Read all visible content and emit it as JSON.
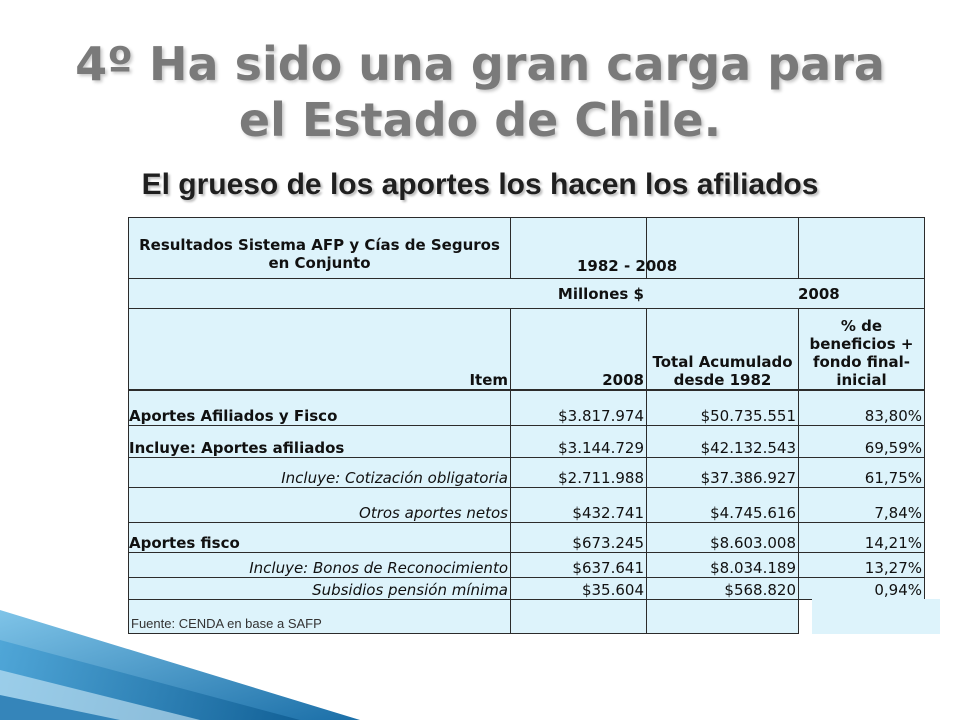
{
  "title_line1": "4º Ha sido una gran carga para",
  "title_line2": "el Estado de Chile.",
  "subtitle": "El grueso de los aportes los hacen los afiliados",
  "table": {
    "header_label": "Resultados Sistema AFP y Cías de Seguros en Conjunto",
    "period": "1982 - 2008",
    "unit": "Millones $",
    "year": "2008",
    "col_item": "Item",
    "col_2008": "2008",
    "col_total": "Total Acumulado desde 1982",
    "col_pct": "% de beneficios + fondo final-inicial",
    "rows": [
      {
        "item": "Aportes Afiliados y Fisco",
        "v2008": "$3.817.974",
        "total": "$50.735.551",
        "pct": "83,80%"
      },
      {
        "item": "Incluye: Aportes afiliados",
        "v2008": "$3.144.729",
        "total": "$42.132.543",
        "pct": "69,59%"
      },
      {
        "item": "Incluye: Cotización obligatoria",
        "v2008": "$2.711.988",
        "total": "$37.386.927",
        "pct": "61,75%"
      },
      {
        "item": "Otros aportes netos",
        "v2008": "$432.741",
        "total": "$4.745.616",
        "pct": "7,84%"
      },
      {
        "item": "Aportes fisco",
        "v2008": "$673.245",
        "total": "$8.603.008",
        "pct": "14,21%"
      },
      {
        "item": "Incluye: Bonos de Reconocimiento",
        "v2008": "$637.641",
        "total": "$8.034.189",
        "pct": "13,27%"
      },
      {
        "item": "Subsidios pensión mínima",
        "v2008": "$35.604",
        "total": "$568.820",
        "pct": "0,94%"
      }
    ],
    "source": "Fuente: CENDA en base a SAFP"
  },
  "colors": {
    "cell_bg": "#ddf3fb",
    "title": "#7a7a7a",
    "accent_blue": "#1e7fb8"
  }
}
